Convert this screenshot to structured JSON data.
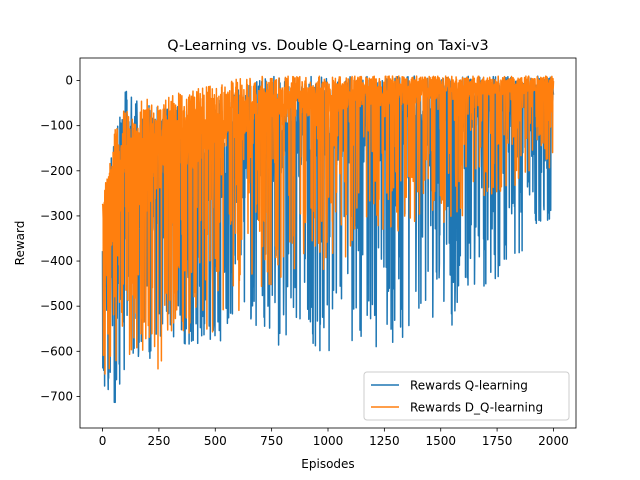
{
  "chart_data": {
    "type": "line",
    "title": "Q-Learning vs. Double Q-Learning on Taxi-v3",
    "xlabel": "Episodes",
    "ylabel": "Reward",
    "xlim": [
      -100,
      2100
    ],
    "ylim": [
      -770,
      50
    ],
    "xticks": [
      0,
      250,
      500,
      750,
      1000,
      1250,
      1500,
      1750,
      2000
    ],
    "yticks": [
      0,
      -100,
      -200,
      -300,
      -400,
      -500,
      -600,
      -700
    ],
    "grid": false,
    "legend_position": "lower-right",
    "series": [
      {
        "name": "Rewards Q-learning",
        "color": "#1f77b4",
        "sampling": "per-episode, estimated envelope",
        "x": [
          0,
          50,
          100,
          150,
          200,
          250,
          300,
          350,
          400,
          450,
          500,
          550,
          600,
          650,
          700,
          750,
          800,
          850,
          900,
          950,
          1000,
          1050,
          1100,
          1150,
          1200,
          1250,
          1300,
          1350,
          1400,
          1450,
          1500,
          1550,
          1600,
          1650,
          1700,
          1750,
          1800,
          1850,
          1900,
          1950,
          2000
        ],
        "low": [
          -700,
          -730,
          -640,
          -620,
          -620,
          -600,
          -600,
          -600,
          -590,
          -590,
          -580,
          -580,
          -560,
          -580,
          -600,
          -600,
          -590,
          -590,
          -600,
          -600,
          -620,
          -620,
          -620,
          -600,
          -590,
          -590,
          -580,
          -580,
          -560,
          -540,
          -560,
          -560,
          -500,
          -500,
          -460,
          -460,
          -440,
          -400,
          -360,
          -340,
          -300
        ],
        "high": [
          -350,
          -120,
          -20,
          -30,
          -50,
          -60,
          -60,
          -50,
          -60,
          -40,
          -30,
          -30,
          -20,
          -10,
          5,
          10,
          10,
          10,
          10,
          10,
          10,
          10,
          10,
          10,
          10,
          10,
          10,
          10,
          10,
          10,
          10,
          10,
          10,
          10,
          10,
          10,
          10,
          10,
          10,
          10,
          10
        ],
        "mean": [
          -600,
          -500,
          -420,
          -400,
          -390,
          -380,
          -370,
          -360,
          -350,
          -340,
          -330,
          -320,
          -300,
          -290,
          -270,
          -260,
          -250,
          -240,
          -235,
          -230,
          -220,
          -215,
          -210,
          -200,
          -195,
          -190,
          -180,
          -175,
          -170,
          -160,
          -150,
          -140,
          -130,
          -120,
          -110,
          -100,
          -90,
          -80,
          -70,
          -60,
          -50
        ]
      },
      {
        "name": "Rewards D_Q-learning",
        "color": "#ff7f0e",
        "sampling": "per-episode, estimated envelope",
        "x": [
          0,
          50,
          100,
          150,
          200,
          250,
          300,
          350,
          400,
          450,
          500,
          550,
          600,
          650,
          700,
          750,
          800,
          850,
          900,
          950,
          1000,
          1050,
          1100,
          1150,
          1200,
          1250,
          1300,
          1350,
          1400,
          1450,
          1500,
          1550,
          1600,
          1650,
          1700,
          1750,
          1800,
          1850,
          1900,
          1950,
          2000
        ],
        "low": [
          -700,
          -660,
          -620,
          -600,
          -600,
          -700,
          -580,
          -560,
          -560,
          -560,
          -560,
          -540,
          -520,
          -500,
          -480,
          -460,
          -440,
          -420,
          -420,
          -420,
          -420,
          -400,
          -400,
          -380,
          -380,
          -360,
          -360,
          -340,
          -340,
          -320,
          -320,
          -300,
          -300,
          -280,
          -260,
          -260,
          -240,
          -240,
          -220,
          -200,
          -200
        ],
        "high": [
          -270,
          -100,
          -60,
          -50,
          -40,
          -40,
          -30,
          -20,
          -20,
          -10,
          -10,
          0,
          5,
          5,
          10,
          10,
          10,
          10,
          10,
          10,
          10,
          10,
          10,
          10,
          10,
          10,
          10,
          10,
          10,
          10,
          10,
          10,
          10,
          10,
          10,
          10,
          10,
          10,
          10,
          10,
          10
        ],
        "mean": [
          -550,
          -420,
          -360,
          -320,
          -300,
          -280,
          -260,
          -240,
          -220,
          -200,
          -180,
          -170,
          -150,
          -140,
          -130,
          -120,
          -110,
          -100,
          -95,
          -90,
          -85,
          -80,
          -75,
          -70,
          -70,
          -65,
          -60,
          -60,
          -55,
          -50,
          -50,
          -45,
          -45,
          -40,
          -40,
          -40,
          -35,
          -35,
          -35,
          -30,
          -30
        ]
      }
    ]
  }
}
